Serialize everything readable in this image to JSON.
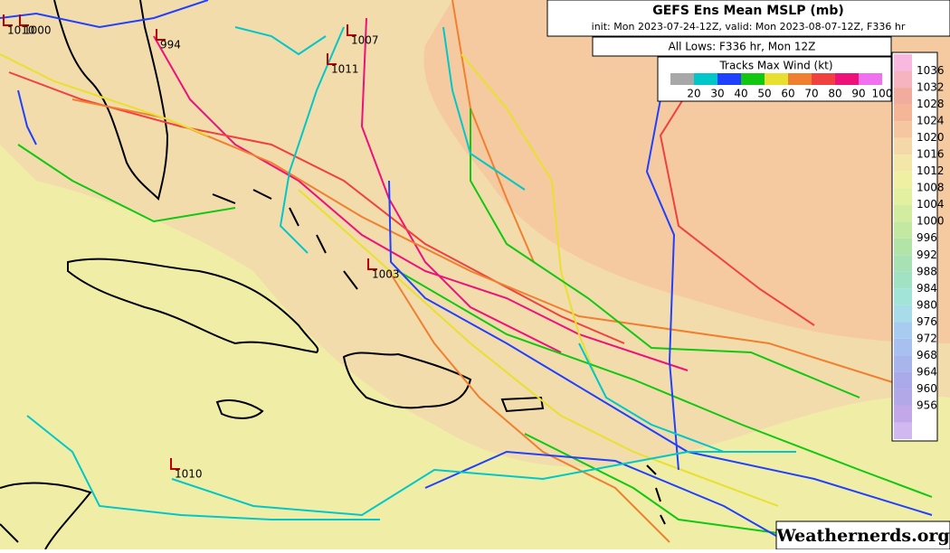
{
  "header": {
    "title": "GEFS Ens Mean MSLP (mb)",
    "subtitle": "init: Mon 2023-07-24-12Z, valid: Mon 2023-08-07-12Z, F336 hr",
    "lows_caption": "All Lows: F336 hr, Mon 12Z"
  },
  "wind_legend": {
    "title": "Tracks Max Wind (kt)",
    "items": [
      {
        "label": 20,
        "color": "#a8a8a8"
      },
      {
        "label": 30,
        "color": "#00c8c8"
      },
      {
        "label": 40,
        "color": "#2040ff"
      },
      {
        "label": 50,
        "color": "#10c810"
      },
      {
        "label": 60,
        "color": "#e8e030"
      },
      {
        "label": 70,
        "color": "#f08030"
      },
      {
        "label": 80,
        "color": "#f04040"
      },
      {
        "label": 90,
        "color": "#f0107a"
      },
      {
        "label": 100,
        "color": "#f070f0"
      }
    ]
  },
  "pressure_scale": [
    {
      "label": 1036,
      "color": "#f5b4c0"
    },
    {
      "label": 1032,
      "color": "#f2ac9e"
    },
    {
      "label": 1028,
      "color": "#f4b696"
    },
    {
      "label": 1024,
      "color": "#f5c6a0"
    },
    {
      "label": 1020,
      "color": "#f4d8aa"
    },
    {
      "label": 1016,
      "color": "#f2e6a8"
    },
    {
      "label": 1012,
      "color": "#f0f0a2"
    },
    {
      "label": 1008,
      "color": "#e2f0a0"
    },
    {
      "label": 1004,
      "color": "#d2eca0"
    },
    {
      "label": 1000,
      "color": "#c2e8a2"
    },
    {
      "label": 996,
      "color": "#b2e4a8"
    },
    {
      "label": 992,
      "color": "#a8e2b4"
    },
    {
      "label": 988,
      "color": "#a2e2c4"
    },
    {
      "label": 984,
      "color": "#a2e4d8"
    },
    {
      "label": 980,
      "color": "#a8dce8"
    },
    {
      "label": 976,
      "color": "#a8ccf0"
    },
    {
      "label": 972,
      "color": "#a8c0f0"
    },
    {
      "label": 968,
      "color": "#a8b4ec"
    },
    {
      "label": 964,
      "color": "#aaaaea"
    },
    {
      "label": 960,
      "color": "#b2a8e8"
    },
    {
      "label": 956,
      "color": "#c2a8e8"
    }
  ],
  "lows": [
    {
      "label": 1010
    },
    {
      "label": 1000
    },
    {
      "label": 994
    },
    {
      "label": 1007
    },
    {
      "label": 1011
    },
    {
      "label": 1003
    },
    {
      "label": 1010
    }
  ],
  "watermark": "Weathernerds.org"
}
